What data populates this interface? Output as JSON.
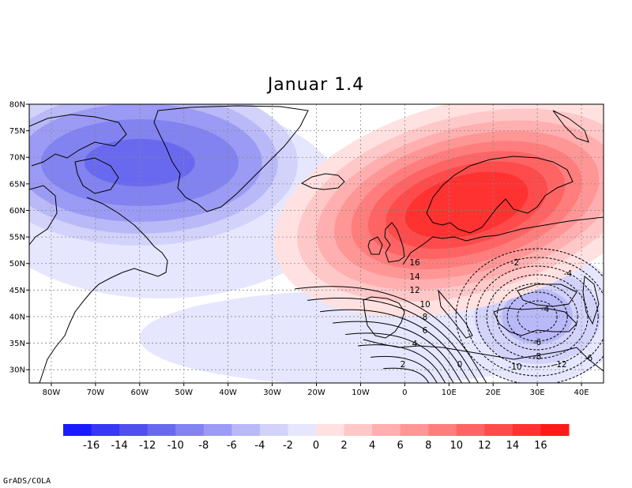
{
  "title": "Januar 1.4",
  "credit": "GrADS/COLA",
  "map": {
    "region": "North Atlantic / Europe",
    "lon_range": [
      -85,
      45
    ],
    "lat_range": [
      27.5,
      80
    ],
    "lat_ticks": [
      "80N",
      "75N",
      "70N",
      "65N",
      "60N",
      "55N",
      "50N",
      "45N",
      "40N",
      "35N",
      "30N"
    ],
    "lon_ticks": [
      "80W",
      "70W",
      "60W",
      "50W",
      "40W",
      "30W",
      "20W",
      "10W",
      "0",
      "10E",
      "20E",
      "30E",
      "40E"
    ],
    "shaded_field": {
      "centers": [
        {
          "name": "positive-anomaly",
          "lon": 15,
          "lat": 61,
          "peak": 16
        },
        {
          "name": "negative-anomaly",
          "lon": -60,
          "lat": 70,
          "peak": -11
        },
        {
          "name": "negative-anomaly-east",
          "lon": 30,
          "lat": 40,
          "peak": -3
        }
      ]
    },
    "contour_labels": [
      "16",
      "14",
      "12",
      "10",
      "8",
      "6",
      "4",
      "2",
      "0",
      "-2",
      "-4",
      "-6",
      "-8",
      "-10",
      "-12",
      "-6",
      "-4"
    ]
  },
  "colorbar": {
    "colors": [
      "#1a1aff",
      "#3737f5",
      "#5050f0",
      "#6969f0",
      "#8282f0",
      "#9b9bf5",
      "#b9b9f8",
      "#d2d2fa",
      "#e6e6ff",
      "#ffe1e1",
      "#ffc8c8",
      "#ffafaf",
      "#ff9696",
      "#ff7d7d",
      "#ff6464",
      "#ff4b4b",
      "#ff3232",
      "#ff1a1a"
    ],
    "labels": [
      "-16",
      "-14",
      "-12",
      "-10",
      "-8",
      "-6",
      "-4",
      "-2",
      "0",
      "2",
      "4",
      "6",
      "8",
      "10",
      "12",
      "14",
      "16"
    ]
  }
}
